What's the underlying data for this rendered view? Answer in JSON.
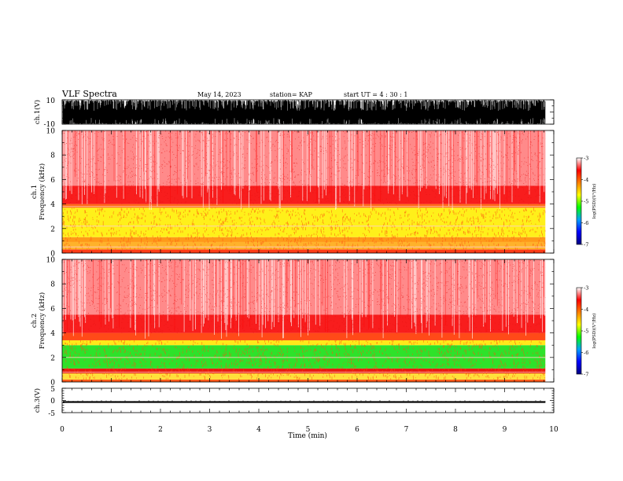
{
  "header": {
    "title": "VLF Spectra",
    "date": "May 14, 2023",
    "station": "station= KAP",
    "start": "start  UT  =   4 : 30 : 1"
  },
  "chart_data": [
    {
      "type": "line",
      "name": "ch1-waveform",
      "ylabel": "ch.1(V)",
      "ylim": [
        -10,
        10
      ],
      "yticks": [
        "10",
        "-10"
      ],
      "xlim": [
        0,
        10
      ],
      "note": "dense voltage waveform filling most of the range"
    },
    {
      "type": "heatmap",
      "name": "ch1-spectrogram",
      "ylabel": [
        "ch.1",
        "Frequency (kHz)"
      ],
      "ylim": [
        0,
        10
      ],
      "yticks": [
        "0",
        "2",
        "4",
        "6",
        "8",
        "10"
      ],
      "xlim": [
        0,
        10
      ],
      "data_xmax": 9.83,
      "bands": [
        {
          "from": 0.0,
          "to": 0.3,
          "color": "#ff3b16"
        },
        {
          "from": 0.3,
          "to": 0.9,
          "color": "#ffb22a"
        },
        {
          "from": 0.9,
          "to": 1.3,
          "color": "#ff9a18"
        },
        {
          "from": 1.3,
          "to": 3.7,
          "color": "#fff01a"
        },
        {
          "from": 3.7,
          "to": 4.0,
          "color": "#ff6a18"
        },
        {
          "from": 4.0,
          "to": 5.5,
          "color": "#f81d1d"
        },
        {
          "from": 5.5,
          "to": 10.0,
          "color": "#ff8a8a"
        }
      ],
      "tones_khz": [
        2.2,
        3.8,
        0.5
      ],
      "colorbar": {
        "label": "log(PSD)(V²/Hz)",
        "range": [
          -7,
          -3
        ],
        "ticks": [
          "-3",
          "-4",
          "-5",
          "-6",
          "-7"
        ]
      }
    },
    {
      "type": "heatmap",
      "name": "ch2-spectrogram",
      "ylabel": [
        "ch.2",
        "Frequency (kHz)"
      ],
      "ylim": [
        0,
        10
      ],
      "yticks": [
        "0",
        "2",
        "4",
        "6",
        "8",
        "10"
      ],
      "xlim": [
        0,
        10
      ],
      "data_xmax": 9.83,
      "bands": [
        {
          "from": 0.0,
          "to": 0.2,
          "color": "#ff5a18"
        },
        {
          "from": 0.2,
          "to": 0.7,
          "color": "#ffe03a"
        },
        {
          "from": 0.7,
          "to": 1.1,
          "color": "#e81a10"
        },
        {
          "from": 1.1,
          "to": 3.0,
          "color": "#2ee22a"
        },
        {
          "from": 3.0,
          "to": 3.4,
          "color": "#ffe81a"
        },
        {
          "from": 3.4,
          "to": 4.0,
          "color": "#ff4a18"
        },
        {
          "from": 4.0,
          "to": 5.5,
          "color": "#f81d1d"
        },
        {
          "from": 5.5,
          "to": 10.0,
          "color": "#ff8a8a"
        }
      ],
      "tones_khz": [
        2.0,
        0.8
      ],
      "colorbar": {
        "label": "log(PSD)(V²/Hz)",
        "range": [
          -7,
          -3
        ],
        "ticks": [
          "-3",
          "-4",
          "-5",
          "-6",
          "-7"
        ]
      }
    },
    {
      "type": "line",
      "name": "ch3-waveform",
      "ylabel": "ch.3(V)",
      "ylim": [
        -5,
        5
      ],
      "yticks": [
        "5",
        "0",
        "-5"
      ],
      "xlim": [
        0,
        10
      ],
      "band": [
        -1.0,
        -0.3
      ],
      "note": "thick black band just below zero"
    }
  ],
  "xaxis": {
    "label": "Time (min)",
    "range": [
      0,
      10
    ],
    "ticks": [
      "0",
      "1",
      "2",
      "3",
      "4",
      "5",
      "6",
      "7",
      "8",
      "9",
      "10"
    ]
  },
  "colors": {
    "background": "#ffffff",
    "axes": "#000000",
    "colormap": [
      "#000080",
      "#0000ff",
      "#00a0ff",
      "#00ff00",
      "#ffff00",
      "#ff8000",
      "#ff0000",
      "#ffffff"
    ]
  }
}
